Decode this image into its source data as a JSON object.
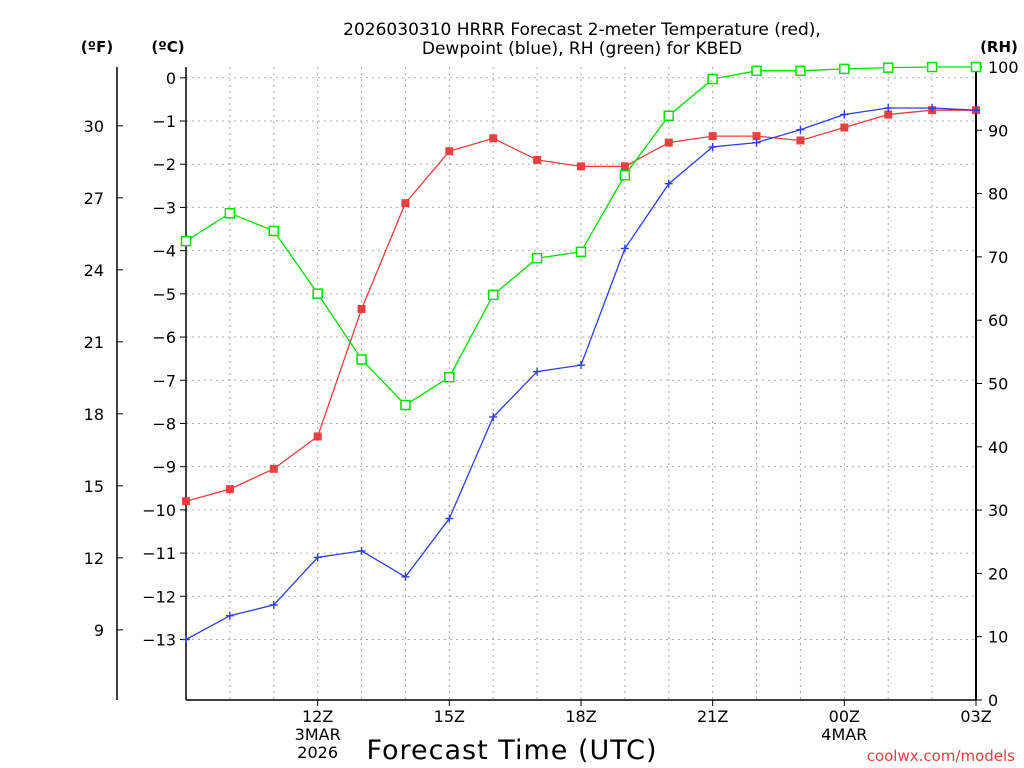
{
  "chart_data": {
    "type": "line",
    "title_lines": [
      "2026030310 HRRR Forecast 2-meter Temperature (red),",
      "Dewpoint (blue), RH (green) for KBED"
    ],
    "units": {
      "fahrenheit": "(ºF)",
      "celsius": "(ºC)",
      "rh": "(RH)"
    },
    "xlabel": "Forecast Time (UTC)",
    "credit": "coolwx.com/models",
    "x_hours": [
      9,
      10,
      11,
      12,
      13,
      14,
      15,
      16,
      17,
      18,
      19,
      20,
      21,
      22,
      23,
      24,
      25,
      26,
      27
    ],
    "xlim": [
      9,
      27
    ],
    "x_ticks": [
      {
        "hour": 12,
        "lines": [
          "12Z",
          "3MAR",
          "2026"
        ]
      },
      {
        "hour": 15,
        "lines": [
          "15Z"
        ]
      },
      {
        "hour": 18,
        "lines": [
          "18Z"
        ]
      },
      {
        "hour": 21,
        "lines": [
          "21Z"
        ]
      },
      {
        "hour": 24,
        "lines": [
          "00Z",
          "4MAR"
        ]
      },
      {
        "hour": 27,
        "lines": [
          "03Z"
        ]
      }
    ],
    "y_left_celsius": {
      "ylim": [
        -14.4,
        0.25
      ],
      "ticks": [
        0,
        -1,
        -2,
        -3,
        -4,
        -5,
        -6,
        -7,
        -8,
        -9,
        -10,
        -11,
        -12,
        -13
      ]
    },
    "y_left_fahrenheit": {
      "ticks": [
        30,
        27,
        24,
        21,
        18,
        15,
        12,
        9
      ]
    },
    "y_right_rh": {
      "ylim": [
        0,
        100
      ],
      "ticks": [
        0,
        10,
        20,
        30,
        40,
        50,
        60,
        70,
        80,
        90,
        100
      ]
    },
    "series": [
      {
        "name": "Temperature",
        "color": "#e8403f",
        "marker": "filled-square",
        "axis": "celsius",
        "values": [
          -9.8,
          -9.52,
          -9.05,
          -8.3,
          -5.35,
          -2.9,
          -1.7,
          -1.4,
          -1.9,
          -2.05,
          -2.05,
          -1.5,
          -1.35,
          -1.35,
          -1.45,
          -1.15,
          -0.85,
          -0.75,
          -0.75
        ]
      },
      {
        "name": "Dewpoint",
        "color": "#2a3fe8",
        "marker": "plus",
        "axis": "celsius",
        "values": [
          -13.0,
          -12.45,
          -12.2,
          -11.1,
          -10.95,
          -11.55,
          -10.2,
          -7.85,
          -6.8,
          -6.65,
          -3.95,
          -2.45,
          -1.6,
          -1.5,
          -1.2,
          -0.85,
          -0.7,
          -0.7,
          -0.75
        ]
      },
      {
        "name": "RH",
        "color": "#00e000",
        "marker": "open-square",
        "axis": "rh",
        "values": [
          72.5,
          76.9,
          74.1,
          64.2,
          53.8,
          46.6,
          51.0,
          64.0,
          69.8,
          70.8,
          82.9,
          92.3,
          98.1,
          99.4,
          99.4,
          99.7,
          99.9,
          100.0,
          100.0
        ]
      }
    ]
  }
}
